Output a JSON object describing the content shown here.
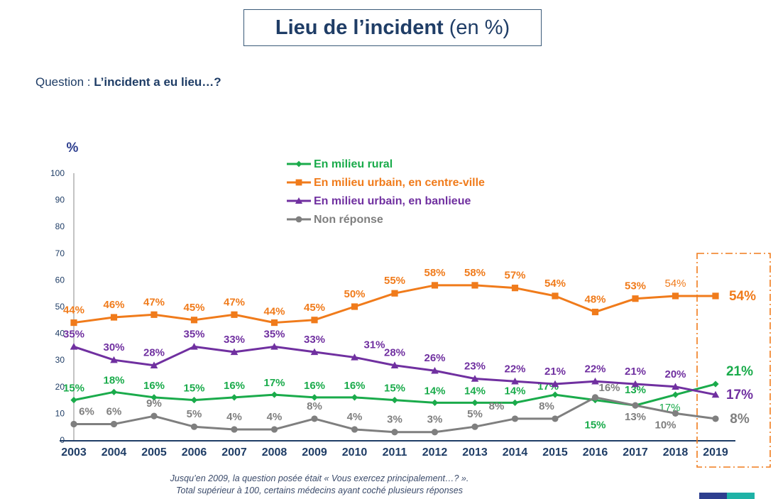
{
  "title": {
    "bold": "Lieu de l’incident",
    "unit": "(en %)"
  },
  "question": {
    "prefix": "Question : ",
    "text": "L’incident a eu lieu…?"
  },
  "footnote": {
    "line1": "Jusqu’en 2009, la question posée était « Vous exercez principalement…? ».",
    "line2": "Total supérieur à 100, certains médecins ayant coché plusieurs réponses"
  },
  "chart_data": {
    "type": "line",
    "ylabel": "%",
    "ylim": [
      0,
      100
    ],
    "yticks": [
      0,
      10,
      20,
      30,
      40,
      50,
      60,
      70,
      80,
      90,
      100
    ],
    "x": [
      "2003",
      "2004",
      "2005",
      "2006",
      "2007",
      "2008",
      "2009",
      "2010",
      "2011",
      "2012",
      "2013",
      "2014",
      "2015",
      "2016",
      "2017",
      "2018",
      "2019"
    ],
    "legend_position": "top-center",
    "highlight": "2019",
    "series": [
      {
        "name": "En milieu rural",
        "color": "#1aab4b",
        "marker": "diamond",
        "values": [
          15,
          18,
          16,
          15,
          16,
          17,
          16,
          16,
          15,
          14,
          14,
          14,
          17,
          15,
          13,
          17,
          21
        ],
        "labels": [
          "15%",
          "18%",
          "16%",
          "15%",
          "16%",
          "17%",
          "16%",
          "16%",
          "15%",
          "14%",
          "14%",
          "14%",
          "17%",
          "15%",
          "13%",
          "17%",
          "21%"
        ]
      },
      {
        "name": "En milieu urbain, en centre-ville",
        "color": "#f07b1b",
        "marker": "square",
        "values": [
          44,
          46,
          47,
          45,
          47,
          44,
          45,
          50,
          55,
          58,
          58,
          57,
          54,
          48,
          53,
          54,
          54
        ],
        "labels": [
          "44%",
          "46%",
          "47%",
          "45%",
          "47%",
          "44%",
          "45%",
          "50%",
          "55%",
          "58%",
          "58%",
          "57%",
          "54%",
          "48%",
          "53%",
          "54%",
          "54%"
        ]
      },
      {
        "name": "En milieu urbain, en banlieue",
        "color": "#7030a0",
        "marker": "triangle",
        "values": [
          35,
          30,
          28,
          35,
          33,
          35,
          33,
          31,
          28,
          26,
          23,
          22,
          21,
          22,
          21,
          20,
          17
        ],
        "labels": [
          "35%",
          "30%",
          "28%",
          "35%",
          "33%",
          "35%",
          "33%",
          "31%",
          "28%",
          "26%",
          "23%",
          "22%",
          "21%",
          "22%",
          "21%",
          "20%",
          "17%"
        ]
      },
      {
        "name": "Non réponse",
        "color": "#7f7f7f",
        "marker": "circle",
        "values": [
          6,
          6,
          9,
          5,
          4,
          4,
          8,
          4,
          3,
          3,
          5,
          8,
          8,
          16,
          13,
          10,
          8
        ],
        "labels": [
          "6%",
          "6%",
          "9%",
          "5%",
          "4%",
          "4%",
          "8%",
          "4%",
          "3%",
          "3%",
          "5%",
          "8%",
          "8%",
          "16%",
          "13%",
          "10%",
          "8%"
        ]
      }
    ]
  }
}
